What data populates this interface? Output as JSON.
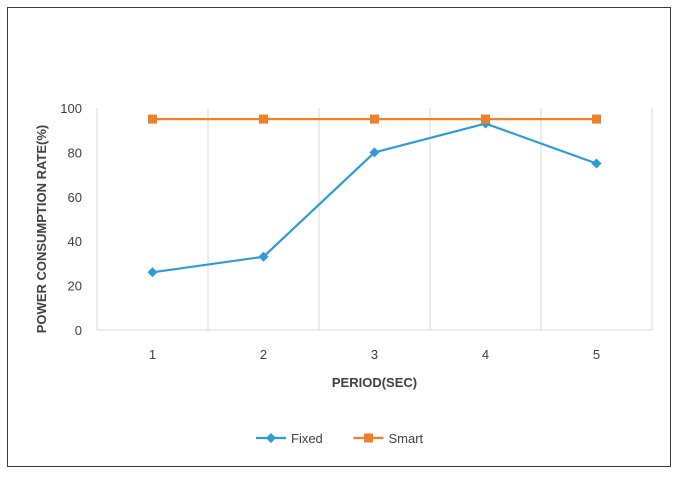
{
  "chart_data": {
    "type": "line",
    "categories": [
      "1",
      "2",
      "3",
      "4",
      "5"
    ],
    "series": [
      {
        "name": "Fixed",
        "values": [
          26,
          33,
          80,
          93,
          75
        ],
        "color": "#2e9bd6",
        "marker": "diamond"
      },
      {
        "name": "Smart",
        "values": [
          95,
          95,
          95,
          95,
          95
        ],
        "color": "#f07f2a",
        "marker": "square"
      }
    ],
    "xlabel": "PERIOD(SEC)",
    "ylabel": "POWER CONSUMPTION RATE(%)",
    "ylim": [
      0,
      100
    ],
    "yticks": [
      0,
      20,
      40,
      60,
      80,
      100
    ],
    "grid": "vertical",
    "legend": "bottom"
  }
}
